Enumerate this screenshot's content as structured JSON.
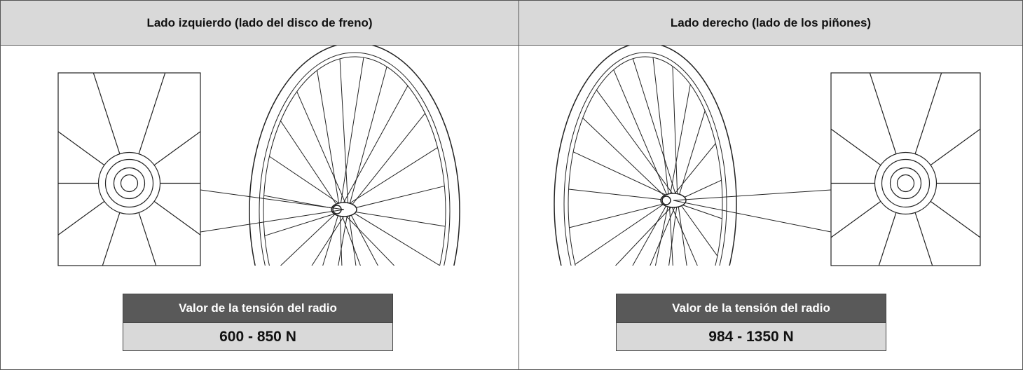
{
  "columns": [
    {
      "header": "Lado izquierdo (lado del disco de freno)",
      "spec": {
        "label": "Valor de la tensión del radio",
        "value": "600 - 850 N"
      }
    },
    {
      "header": "Lado derecho (lado de los piñones)",
      "spec": {
        "label": "Valor de la tensión del radio",
        "value": "984 - 1350 N"
      }
    }
  ]
}
